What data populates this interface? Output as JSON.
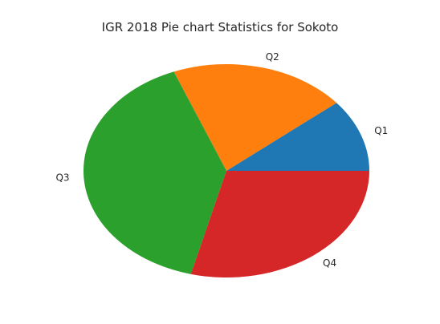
{
  "chart_data": {
    "type": "pie",
    "title": "IGR 2018 Pie chart Statistics for Sokoto",
    "labels": [
      "Q1",
      "Q2",
      "Q3",
      "Q4"
    ],
    "values": [
      11,
      20,
      40,
      29
    ],
    "colors": [
      "#1f77b4",
      "#ff7f0e",
      "#2ca02c",
      "#d62728"
    ],
    "start_angle_deg": 0,
    "direction": "counterclockwise",
    "legend": "none"
  }
}
